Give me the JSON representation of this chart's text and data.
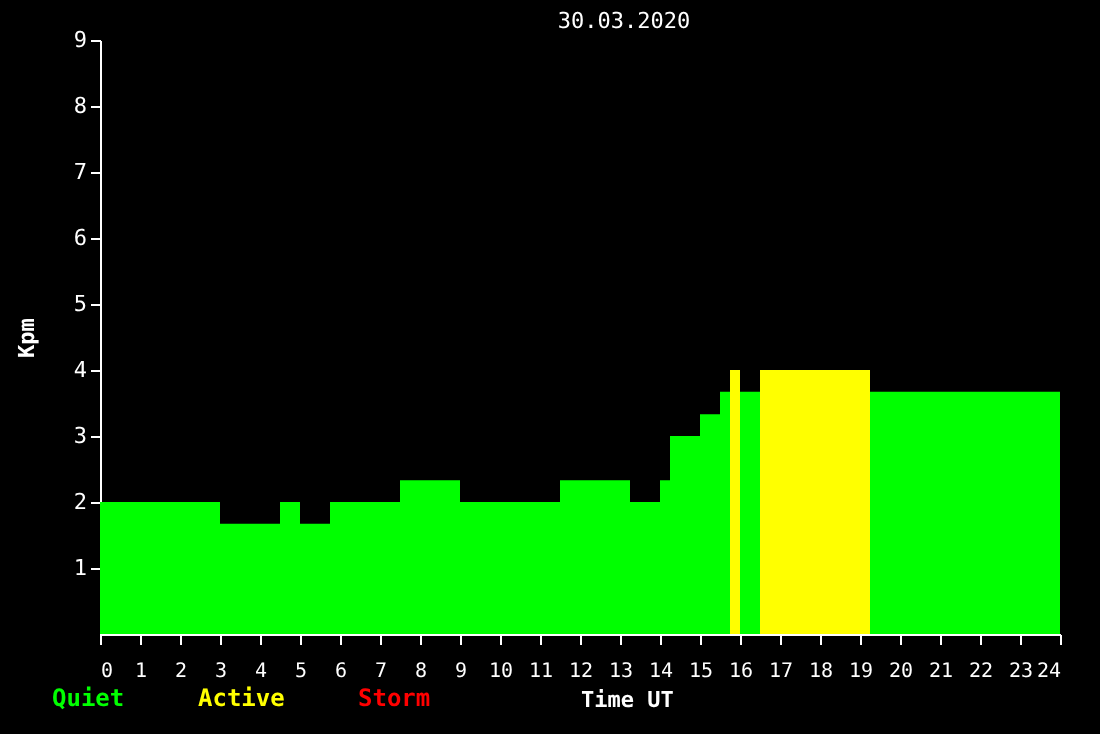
{
  "chart_data": {
    "type": "bar",
    "title": "30.03.2020",
    "xlabel": "Time UT",
    "ylabel": "Kpm",
    "x": [
      1.5,
      3.75,
      4.75,
      5.375,
      6.625,
      8.25,
      10.25,
      12.375,
      13.625,
      14.125,
      14.625,
      15.25,
      15.625,
      15.875,
      16.25,
      17.875,
      21.625
    ],
    "series": [
      {
        "name": "Quiet",
        "color": "#00ff00",
        "values": [
          2,
          1.67,
          2,
          1.67,
          2,
          2.33,
          2,
          2.33,
          2,
          2.33,
          3,
          3.33,
          3.67,
          null,
          3.67,
          null,
          3.67
        ]
      },
      {
        "name": "Active",
        "color": "#ffff00",
        "values": [
          null,
          null,
          null,
          null,
          null,
          null,
          null,
          null,
          null,
          null,
          null,
          null,
          null,
          4,
          null,
          4,
          null
        ]
      },
      {
        "name": "Storm",
        "color": "#ff0000",
        "values": [
          null,
          null,
          null,
          null,
          null,
          null,
          null,
          null,
          null,
          null,
          null,
          null,
          null,
          null,
          null,
          null,
          null
        ]
      }
    ],
    "xlim": [
      0,
      24
    ],
    "xticks": [
      0,
      1,
      2,
      3,
      4,
      5,
      6,
      7,
      8,
      9,
      10,
      11,
      12,
      13,
      14,
      15,
      16,
      17,
      18,
      19,
      20,
      21,
      22,
      23,
      24
    ],
    "ylim": [
      0,
      9
    ],
    "yticks": [
      1,
      2,
      3,
      4,
      5,
      6,
      7,
      8,
      9
    ],
    "grid": false,
    "legend": "bottom left"
  }
}
